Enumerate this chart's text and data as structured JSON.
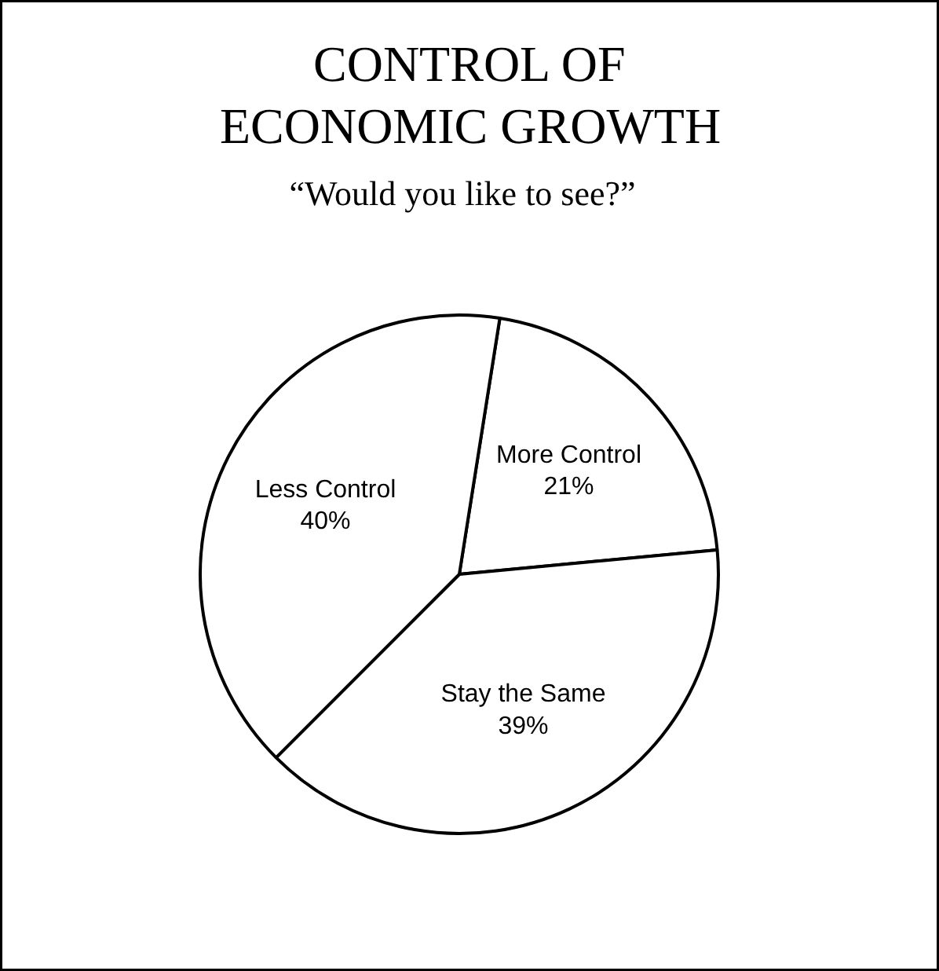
{
  "chart_data": {
    "type": "pie",
    "title": "CONTROL OF\nECONOMIC GROWTH",
    "subtitle": "“Would you like to see?”",
    "categories": [
      "More Control",
      "Stay the Same",
      "Less Control"
    ],
    "values": [
      21,
      39,
      40
    ],
    "value_labels": [
      "21%",
      "39%",
      "40%"
    ],
    "colors": [
      "#ffffff",
      "#ffffff",
      "#ffffff"
    ]
  }
}
